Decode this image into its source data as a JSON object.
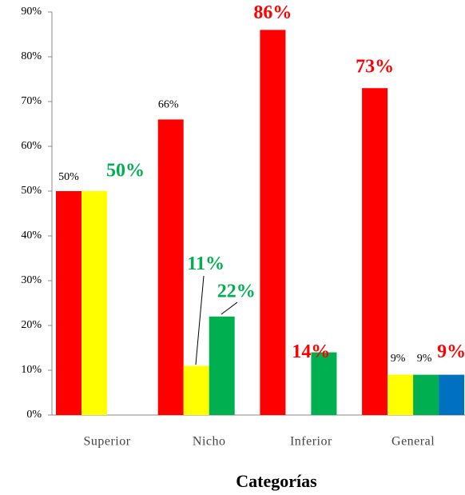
{
  "chart_data": {
    "type": "bar",
    "x_label": "Categorías",
    "categories": [
      "Superior",
      "Nicho",
      "Inferior",
      "General"
    ],
    "series": [
      {
        "color": "#ff0000",
        "values": [
          50,
          66,
          86,
          73
        ],
        "value_labels": [
          "50%",
          "66%",
          "86%",
          "73%"
        ]
      },
      {
        "color": "#ffff00",
        "values": [
          50,
          11,
          null,
          9
        ],
        "value_labels": [
          "50%",
          "11%",
          null,
          "9%"
        ]
      },
      {
        "color": "#00b050",
        "values": [
          null,
          22,
          14,
          9
        ],
        "value_labels": [
          null,
          "22%",
          "14%",
          "9%"
        ]
      },
      {
        "color": "#0070c0",
        "values": [
          null,
          null,
          null,
          9
        ],
        "value_labels": [
          null,
          null,
          null,
          "9%"
        ]
      }
    ],
    "ylim": [
      0,
      90
    ],
    "yticks": [
      {
        "value": 0,
        "label": "0%"
      },
      {
        "value": 10,
        "label": "10%"
      },
      {
        "value": 20,
        "label": "20%"
      },
      {
        "value": 30,
        "label": "30%"
      },
      {
        "value": 40,
        "label": "40%"
      },
      {
        "value": 50,
        "label": "50%"
      },
      {
        "value": 60,
        "label": "60%"
      },
      {
        "value": 70,
        "label": "70%"
      },
      {
        "value": 80,
        "label": "80%"
      },
      {
        "value": 90,
        "label": "90%"
      }
    ]
  }
}
